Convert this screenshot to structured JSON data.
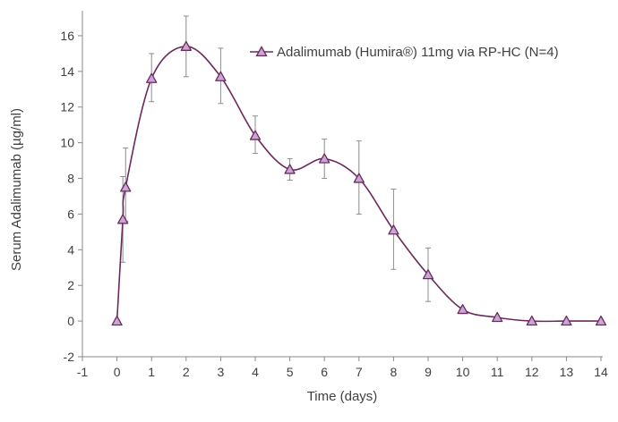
{
  "chart_data": {
    "type": "line",
    "title": "",
    "xlabel": "Time (days)",
    "ylabel": "Serum Adalimumab (µg/ml)",
    "xlim": [
      -1,
      14
    ],
    "ylim": [
      -2,
      17
    ],
    "xticks": [
      "-1",
      "0",
      "1",
      "2",
      "3",
      "4",
      "5",
      "6",
      "7",
      "8",
      "9",
      "10",
      "11",
      "12",
      "13",
      "14"
    ],
    "yticks": [
      "-2",
      "0",
      "2",
      "4",
      "6",
      "8",
      "10",
      "12",
      "14",
      "16"
    ],
    "grid": false,
    "legend": "top-right",
    "series": [
      {
        "name": "Adalimumab (Humira®) 11mg via RP-HC (N=4)",
        "color": "#6b2a5c",
        "marker": "triangle",
        "marker_fill": "#c9a6d6",
        "x": [
          0,
          0.17,
          0.25,
          1,
          2,
          3,
          4,
          5,
          6,
          7,
          8,
          9,
          10,
          11,
          12,
          13,
          14
        ],
        "y": [
          0,
          5.7,
          7.5,
          13.6,
          15.4,
          13.7,
          10.4,
          8.5,
          9.1,
          8.0,
          5.1,
          2.6,
          0.65,
          0.2,
          0.0,
          0.0,
          0.0
        ],
        "err_low": [
          null,
          2.4,
          1.9,
          1.3,
          1.7,
          1.5,
          1.0,
          0.6,
          1.1,
          2.0,
          2.2,
          1.5,
          null,
          null,
          null,
          null,
          null
        ],
        "err_high": [
          null,
          2.4,
          2.2,
          1.4,
          1.7,
          1.6,
          1.1,
          0.6,
          1.1,
          2.1,
          2.3,
          1.5,
          null,
          null,
          null,
          null,
          null
        ]
      }
    ]
  }
}
